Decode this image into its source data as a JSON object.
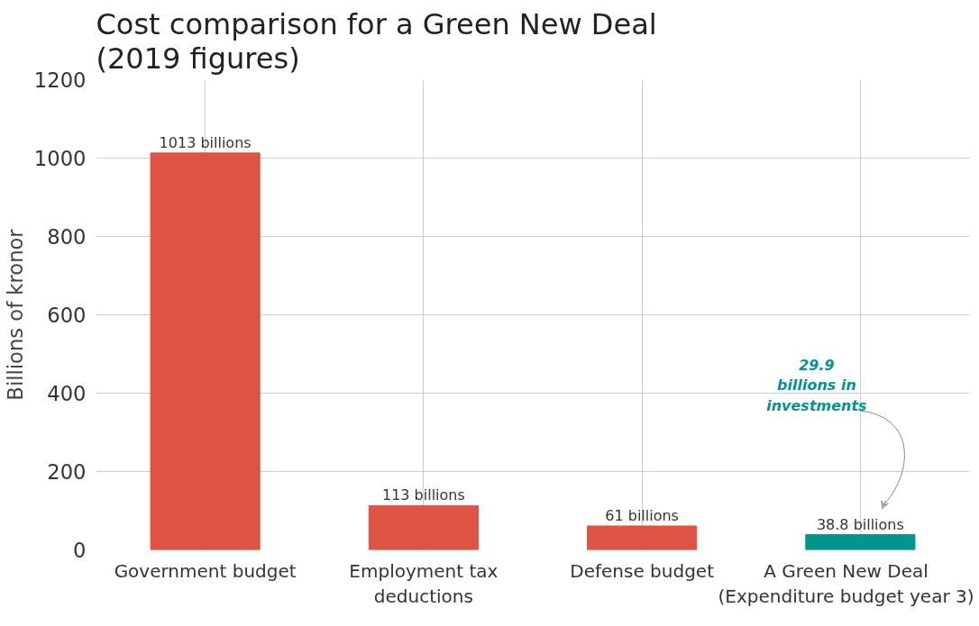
{
  "chart_data": {
    "type": "bar",
    "title": "Cost comparison for a Green New Deal\n(2019 figures)",
    "ylabel": "Billions of kronor",
    "categories": [
      "Government budget",
      "Employment tax\ndeductions",
      "Defense budget",
      "A Green New Deal\n(Expenditure budget year 3)"
    ],
    "values": [
      1013,
      113,
      61,
      38.8
    ],
    "colors": [
      "#de5343",
      "#de5343",
      "#de5343",
      "#00958f"
    ],
    "value_labels": [
      "1013 billions",
      "113 billions",
      "61 billions",
      "38.8 billions"
    ],
    "annotations": [
      "29.9\nbillions in\ninvestments"
    ],
    "ylim": [
      0,
      1200
    ],
    "yticks": [
      0,
      200,
      400,
      600,
      800,
      1000,
      1200
    ],
    "grid": true
  }
}
